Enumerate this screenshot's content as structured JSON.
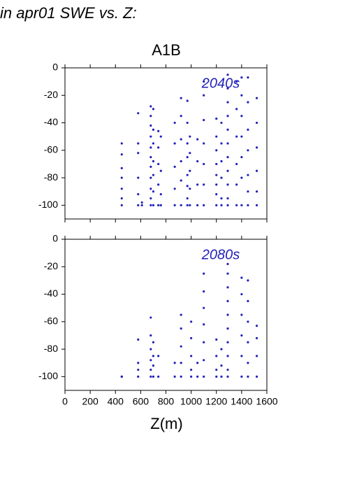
{
  "heading": "in apr01 SWE vs. Z:",
  "chart_data": [
    {
      "type": "scatter",
      "title": "A1B",
      "annotation": "2040s",
      "color": "#2222bb",
      "x": [
        450,
        450,
        450,
        450,
        450,
        450,
        450,
        580,
        580,
        580,
        580,
        580,
        580,
        610,
        610,
        680,
        680,
        680,
        680,
        680,
        680,
        680,
        680,
        680,
        680,
        680,
        700,
        700,
        700,
        700,
        700,
        700,
        700,
        740,
        740,
        740,
        740,
        740,
        760,
        760,
        760,
        760,
        870,
        870,
        870,
        870,
        870,
        920,
        920,
        920,
        920,
        920,
        920,
        970,
        970,
        970,
        970,
        970,
        970,
        970,
        970,
        990,
        990,
        990,
        990,
        990,
        1050,
        1050,
        1050,
        1050,
        1100,
        1100,
        1100,
        1100,
        1100,
        1100,
        1100,
        1200,
        1200,
        1200,
        1200,
        1200,
        1200,
        1200,
        1200,
        1240,
        1240,
        1240,
        1240,
        1240,
        1240,
        1290,
        1290,
        1290,
        1290,
        1290,
        1290,
        1290,
        1290,
        1290,
        1290,
        1290,
        1360,
        1360,
        1360,
        1360,
        1360,
        1360,
        1400,
        1400,
        1400,
        1400,
        1400,
        1400,
        1400,
        1450,
        1450,
        1450,
        1450,
        1450,
        1450,
        1450,
        1520,
        1520,
        1520,
        1520,
        1520,
        1520
      ],
      "y": [
        -55,
        -63,
        -73,
        -80,
        -88,
        -95,
        -100,
        -33,
        -55,
        -62,
        -80,
        -92,
        -100,
        -100,
        -98,
        -28,
        -35,
        -42,
        -50,
        -58,
        -65,
        -72,
        -80,
        -88,
        -95,
        -100,
        -30,
        -45,
        -55,
        -68,
        -78,
        -90,
        -100,
        -46,
        -58,
        -70,
        -85,
        -100,
        -50,
        -75,
        -92,
        -100,
        -40,
        -55,
        -72,
        -88,
        -100,
        -22,
        -35,
        -52,
        -68,
        -82,
        -100,
        -24,
        -40,
        -55,
        -65,
        -78,
        -86,
        -95,
        -100,
        -50,
        -62,
        -75,
        -88,
        -100,
        -52,
        -68,
        -85,
        -100,
        -10,
        -20,
        -38,
        -55,
        -70,
        -85,
        -100,
        -37,
        -50,
        -60,
        -70,
        -78,
        -85,
        -92,
        -100,
        -40,
        -55,
        -68,
        -80,
        -95,
        -100,
        -5,
        -15,
        -25,
        -35,
        -45,
        -55,
        -65,
        -75,
        -85,
        -95,
        -100,
        -10,
        -30,
        -50,
        -70,
        -85,
        -100,
        -7,
        -20,
        -35,
        -50,
        -65,
        -80,
        -100,
        -7,
        -25,
        -45,
        -60,
        -78,
        -90,
        -100,
        -22,
        -40,
        -58,
        -75,
        -90,
        -100
      ],
      "xlim": [
        0,
        1600
      ],
      "ylim": [
        -110,
        0
      ],
      "xticks": [
        0,
        200,
        400,
        600,
        800,
        1000,
        1200,
        1400,
        1600
      ],
      "yticks": [
        0,
        -20,
        -40,
        -60,
        -80,
        -100
      ]
    },
    {
      "type": "scatter",
      "annotation": "2080s",
      "xlabel": "Z(m)",
      "color": "#2222bb",
      "x": [
        450,
        450,
        580,
        580,
        580,
        580,
        680,
        680,
        680,
        680,
        680,
        680,
        700,
        700,
        700,
        700,
        740,
        740,
        870,
        870,
        920,
        920,
        920,
        920,
        920,
        1000,
        1000,
        1000,
        1000,
        1000,
        1050,
        1050,
        1100,
        1100,
        1100,
        1100,
        1100,
        1100,
        1100,
        1200,
        1200,
        1200,
        1200,
        1240,
        1240,
        1240,
        1290,
        1290,
        1290,
        1290,
        1290,
        1290,
        1290,
        1290,
        1290,
        1290,
        1400,
        1400,
        1400,
        1400,
        1400,
        1400,
        1450,
        1450,
        1450,
        1450,
        1450,
        1450,
        1520,
        1520,
        1520,
        1520
      ],
      "y": [
        -100,
        -100,
        -73,
        -90,
        -95,
        -100,
        -57,
        -70,
        -80,
        -88,
        -95,
        -100,
        -75,
        -85,
        -92,
        -100,
        -85,
        -100,
        -90,
        -100,
        -55,
        -65,
        -78,
        -90,
        -100,
        -60,
        -72,
        -85,
        -95,
        -100,
        -90,
        -100,
        -25,
        -38,
        -50,
        -62,
        -75,
        -88,
        -100,
        -73,
        -85,
        -95,
        -100,
        -80,
        -92,
        -100,
        -18,
        -25,
        -35,
        -45,
        -55,
        -65,
        -75,
        -85,
        -95,
        -100,
        -28,
        -40,
        -55,
        -70,
        -85,
        -100,
        -30,
        -45,
        -60,
        -75,
        -90,
        -100,
        -63,
        -72,
        -85,
        -100
      ],
      "xlim": [
        0,
        1600
      ],
      "ylim": [
        -110,
        0
      ],
      "xticks": [
        0,
        200,
        400,
        600,
        800,
        1000,
        1200,
        1400,
        1600
      ],
      "yticks": [
        0,
        -20,
        -40,
        -60,
        -80,
        -100
      ]
    }
  ]
}
